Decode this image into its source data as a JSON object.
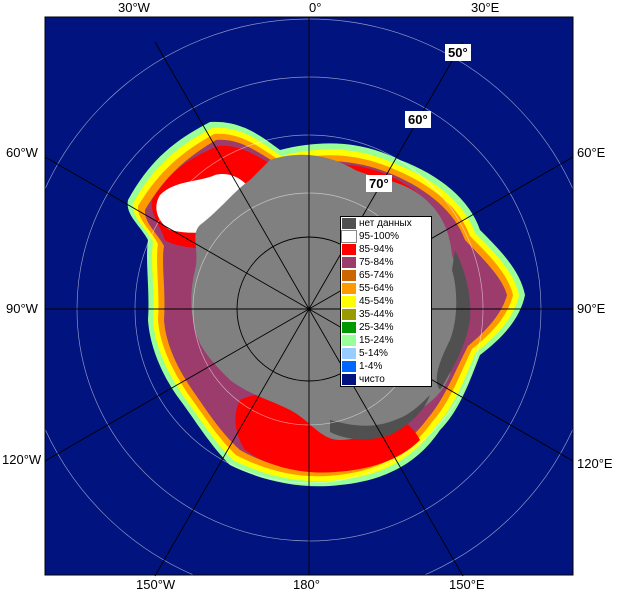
{
  "map": {
    "edge_labels": {
      "top": [
        "30°W",
        "0°",
        "30°E"
      ],
      "left": [
        "60°W",
        "90°W",
        "120°W"
      ],
      "right": [
        "60°E",
        "90°E",
        "120°E"
      ],
      "bottom": [
        "150°W",
        "180°",
        "150°E"
      ]
    },
    "latitude_labels": [
      "50°",
      "60°",
      "70°"
    ],
    "colors": {
      "ocean": "#00137f",
      "land": "#808080",
      "outside": "#ffffff",
      "grid": "#000000"
    }
  },
  "legend": {
    "items": [
      {
        "label": "нет данных",
        "color": "#505050"
      },
      {
        "label": "95-100%",
        "color": "#ffffff"
      },
      {
        "label": "85-94%",
        "color": "#ff0000"
      },
      {
        "label": "75-84%",
        "color": "#9c3c6c"
      },
      {
        "label": "65-74%",
        "color": "#cc6600"
      },
      {
        "label": "55-64%",
        "color": "#ff9900"
      },
      {
        "label": "45-54%",
        "color": "#ffff00"
      },
      {
        "label": "35-44%",
        "color": "#999900"
      },
      {
        "label": "25-34%",
        "color": "#009900"
      },
      {
        "label": "15-24%",
        "color": "#99ff99"
      },
      {
        "label": "5-14%",
        "color": "#99ccff"
      },
      {
        "label": "1-4%",
        "color": "#0066ff"
      },
      {
        "label": "чисто",
        "color": "#00137f"
      }
    ]
  }
}
